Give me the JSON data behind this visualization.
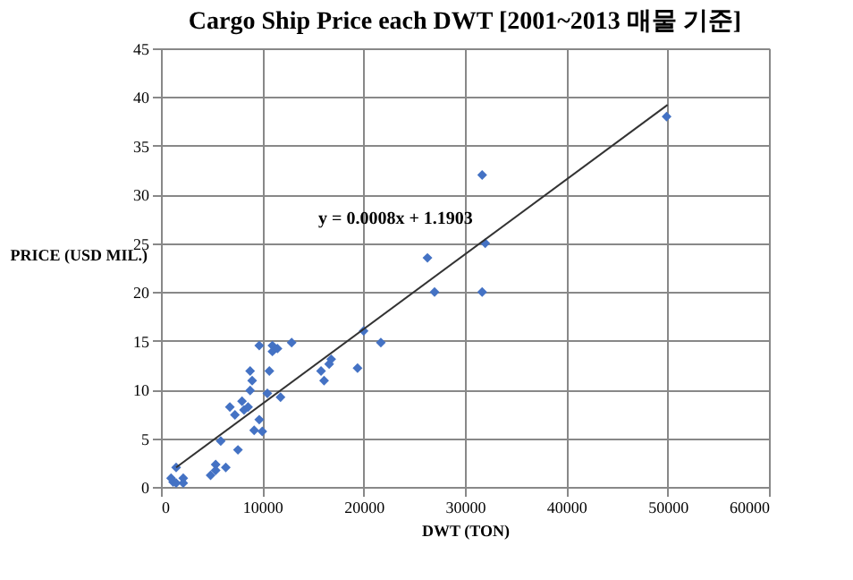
{
  "chart_data": {
    "type": "scatter",
    "title": "Cargo Ship Price each DWT [2001~2013 매물 기준]",
    "xlabel": "DWT (TON)",
    "ylabel": "PRICE (USD MIL.)",
    "xlim": [
      0,
      60000
    ],
    "xticks": [
      0,
      10000,
      20000,
      30000,
      40000,
      50000,
      60000
    ],
    "ylim": [
      0,
      45
    ],
    "yticks": [
      0,
      5,
      10,
      15,
      20,
      25,
      30,
      35,
      40,
      45
    ],
    "grid": true,
    "legend": false,
    "marker": "diamond",
    "annotations": [
      "y = 0.0008x + 1.1903"
    ],
    "series": [
      {
        "color": "#4472c4",
        "x": [
          1500,
          1200,
          1000,
          2200,
          2200,
          1500,
          4900,
          5400,
          5400,
          6400,
          5900,
          7600,
          6800,
          7300,
          8000,
          8200,
          8600,
          8800,
          8800,
          9000,
          9200,
          9700,
          10000,
          9700,
          10500,
          10700,
          11000,
          11000,
          11500,
          11800,
          12900,
          15800,
          16100,
          16600,
          16800,
          19400,
          20000,
          21700,
          26300,
          27000,
          31700,
          32000,
          31700,
          49900
        ],
        "values": [
          2.0,
          0.5,
          0.9,
          0.9,
          0.4,
          0.4,
          1.2,
          2.3,
          1.7,
          2.0,
          4.7,
          3.8,
          8.2,
          7.4,
          8.8,
          7.9,
          8.2,
          9.9,
          11.9,
          10.9,
          5.8,
          6.9,
          5.7,
          14.5,
          9.6,
          11.9,
          14.5,
          13.9,
          14.2,
          9.2,
          14.8,
          11.9,
          10.9,
          12.6,
          13.1,
          12.2,
          16.0,
          14.8,
          23.5,
          20,
          32,
          25,
          20,
          38
        ]
      },
      {
        "type": "line",
        "color": "#333333",
        "marker": "none",
        "x": [
          1500,
          50000
        ],
        "values": [
          2.0,
          39.2
        ]
      }
    ]
  }
}
